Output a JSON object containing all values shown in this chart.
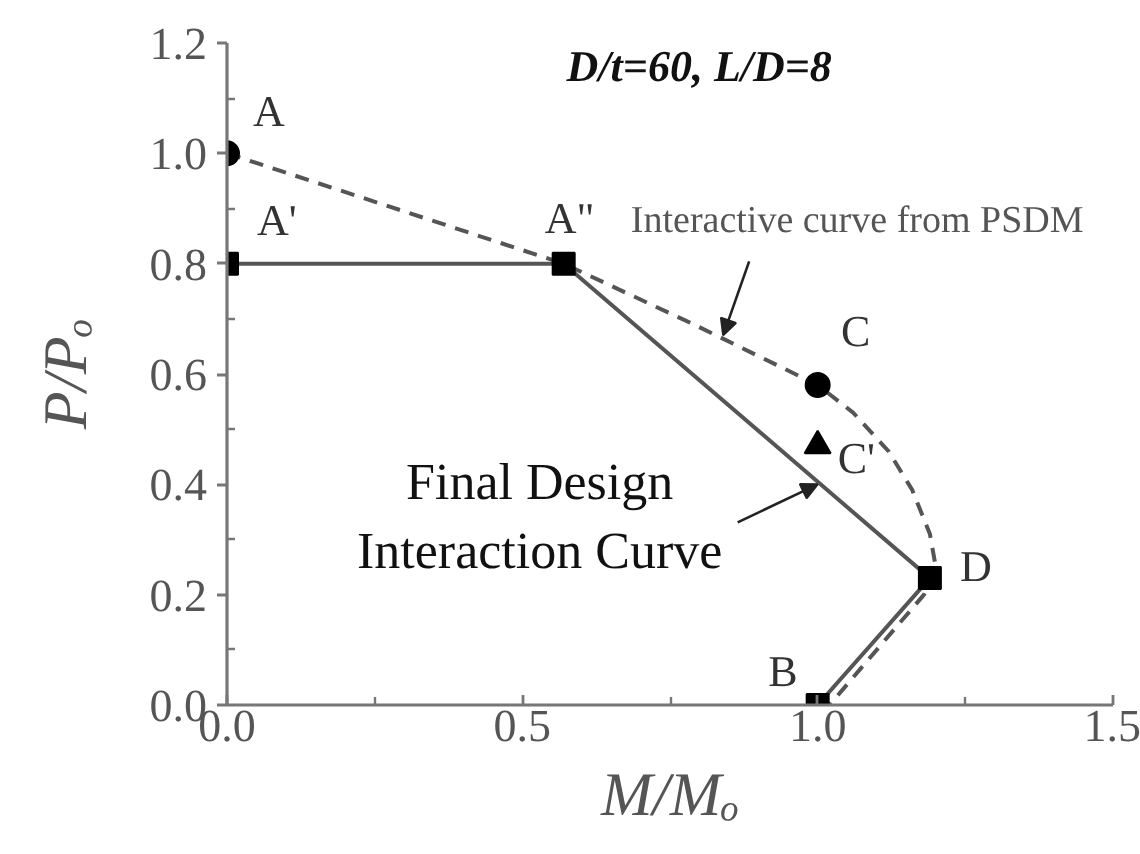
{
  "chart_data": {
    "type": "line",
    "title": "D/t=60, L/D=8",
    "xlabel": "M/Mₒ",
    "ylabel": "P/Pₒ",
    "xlim": [
      0,
      1.5
    ],
    "ylim": [
      0,
      1.2
    ],
    "xticks": [
      {
        "value": 0,
        "label": "0.0"
      },
      {
        "value": 0.25,
        "label": null
      },
      {
        "value": 0.5,
        "label": "0.5"
      },
      {
        "value": 0.75,
        "label": null
      },
      {
        "value": 1.0,
        "label": "1.0"
      },
      {
        "value": 1.25,
        "label": null
      },
      {
        "value": 1.5,
        "label": "1.5"
      }
    ],
    "yticks": [
      {
        "value": 0,
        "label": "0.0"
      },
      {
        "value": 0.1,
        "label": null
      },
      {
        "value": 0.2,
        "label": "0.2"
      },
      {
        "value": 0.3,
        "label": null
      },
      {
        "value": 0.4,
        "label": "0.4"
      },
      {
        "value": 0.5,
        "label": null
      },
      {
        "value": 0.6,
        "label": "0.6"
      },
      {
        "value": 0.7,
        "label": null
      },
      {
        "value": 0.8,
        "label": "0.8"
      },
      {
        "value": 0.9,
        "label": null
      },
      {
        "value": 1.0,
        "label": "1.0"
      },
      {
        "value": 1.1,
        "label": null
      },
      {
        "value": 1.2,
        "label": "1.2"
      }
    ],
    "series": [
      {
        "line_style": "dashed",
        "color": "#555555",
        "x": [
          0,
          0.57,
          0.79,
          1.0,
          1.06,
          1.12,
          1.16,
          1.19,
          1.2,
          1.18,
          1.1,
          1.02
        ],
        "values": [
          1.0,
          0.8,
          0.69,
          0.58,
          0.53,
          0.46,
          0.39,
          0.31,
          0.25,
          0.2,
          0.1,
          0.0
        ]
      },
      {
        "line_style": "solid",
        "color": "#555555",
        "x": [
          0,
          0.57,
          1.19,
          1.0
        ],
        "values": [
          0.8,
          0.8,
          0.23,
          0.0
        ]
      },
      {
        "type": "scatter",
        "marker": "square",
        "color": "#000000",
        "x": [
          0,
          0.57,
          1.19,
          1.0
        ],
        "values": [
          0.8,
          0.8,
          0.23,
          0.0
        ]
      },
      {
        "type": "scatter",
        "marker": "circle",
        "color": "#000000",
        "x": [
          0,
          1.0
        ],
        "values": [
          1.0,
          0.58
        ]
      },
      {
        "type": "scatter",
        "marker": "triangle",
        "color": "#000000",
        "x": [
          1.0
        ],
        "values": [
          0.47
        ]
      }
    ],
    "annotations": [
      {
        "text": "A",
        "x": 0,
        "y": 1.0
      },
      {
        "text": "A'",
        "x": 0,
        "y": 0.8
      },
      {
        "text": "A\"",
        "x": 0.57,
        "y": 0.8
      },
      {
        "text": "C",
        "x": 1.0,
        "y": 0.58
      },
      {
        "text": "C'",
        "x": 1.0,
        "y": 0.47
      },
      {
        "text": "D",
        "x": 1.19,
        "y": 0.23
      },
      {
        "text": "B",
        "x": 1.0,
        "y": 0.0
      },
      {
        "text": "Interactive curve from PSDM",
        "x": 0.84,
        "y": 0.67
      },
      {
        "text": "Final Design\nInteraction Curve",
        "x": 1.0,
        "y": 0.4
      }
    ]
  }
}
